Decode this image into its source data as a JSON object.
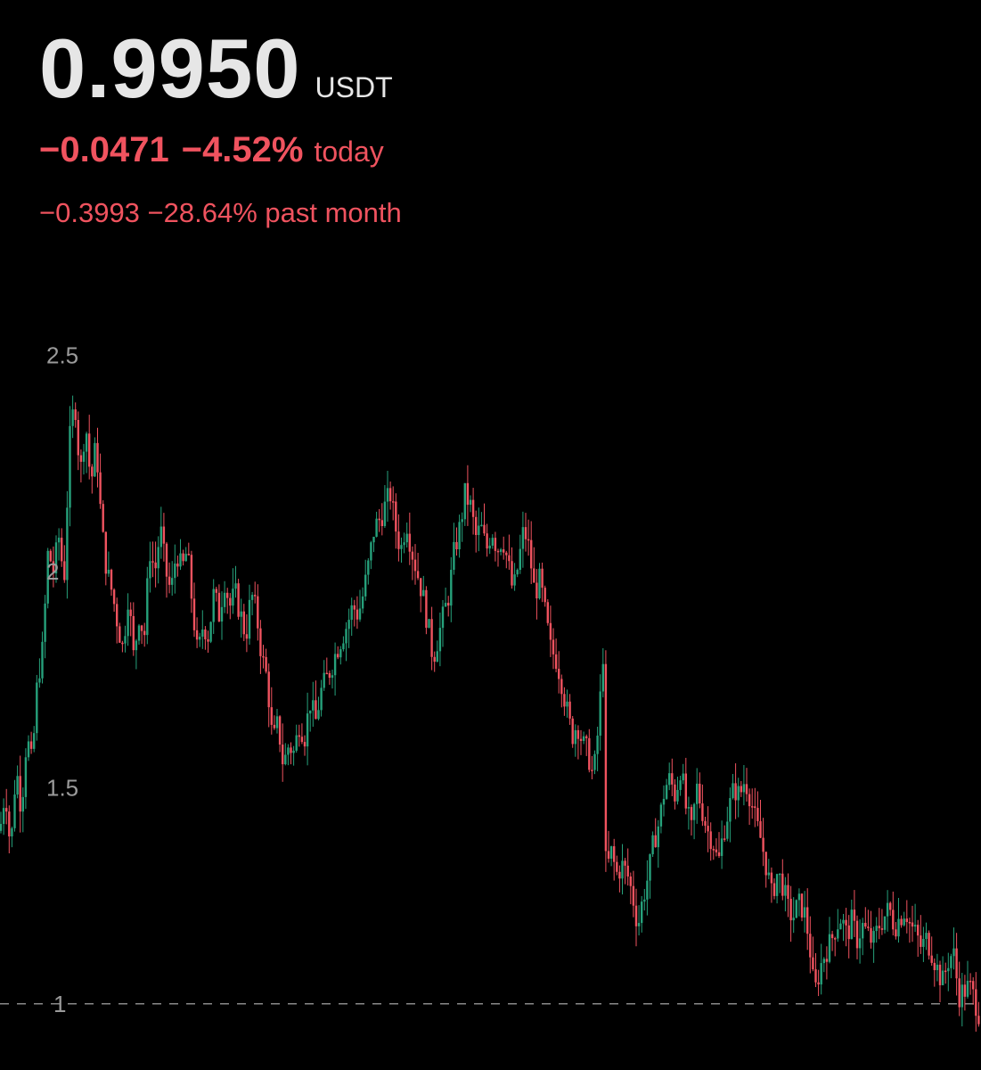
{
  "header": {
    "price": "0.9950",
    "unit": "USDT",
    "change_abs": "−0.0471",
    "change_pct": "−4.52%",
    "change_label": "today",
    "month_change": "−0.3993 −28.64% past month"
  },
  "colors": {
    "up": "#26a17b",
    "down": "#f0535f",
    "text": "#e6e6e6",
    "tick": "#9a9a9a"
  },
  "chart_data": {
    "type": "candlestick",
    "ylim": [
      0.95,
      2.6
    ],
    "yticks": [
      {
        "label": "2.5",
        "value": 2.5
      },
      {
        "label": "2",
        "value": 2.0
      },
      {
        "label": "1.5",
        "value": 1.5
      },
      {
        "label": "1",
        "value": 1.0
      }
    ],
    "reference_line": 1.0,
    "path": [
      [
        0,
        1.4
      ],
      [
        6,
        1.5
      ],
      [
        12,
        1.35
      ],
      [
        18,
        1.55
      ],
      [
        24,
        1.45
      ],
      [
        30,
        1.62
      ],
      [
        36,
        1.55
      ],
      [
        42,
        1.75
      ],
      [
        48,
        1.82
      ],
      [
        54,
        2.05
      ],
      [
        60,
        2.0
      ],
      [
        66,
        2.08
      ],
      [
        72,
        1.98
      ],
      [
        78,
        2.3
      ],
      [
        84,
        2.4
      ],
      [
        90,
        2.22
      ],
      [
        96,
        2.35
      ],
      [
        102,
        2.2
      ],
      [
        108,
        2.3
      ],
      [
        114,
        2.1
      ],
      [
        120,
        2.0
      ],
      [
        126,
        1.95
      ],
      [
        132,
        1.88
      ],
      [
        138,
        1.82
      ],
      [
        144,
        1.95
      ],
      [
        150,
        1.8
      ],
      [
        156,
        1.9
      ],
      [
        162,
        1.85
      ],
      [
        168,
        2.05
      ],
      [
        174,
        2.0
      ],
      [
        180,
        2.1
      ],
      [
        186,
        2.0
      ],
      [
        192,
        1.95
      ],
      [
        198,
        2.05
      ],
      [
        204,
        2.0
      ],
      [
        210,
        2.05
      ],
      [
        216,
        1.92
      ],
      [
        222,
        1.8
      ],
      [
        228,
        1.88
      ],
      [
        234,
        1.85
      ],
      [
        240,
        1.95
      ],
      [
        246,
        1.9
      ],
      [
        252,
        1.98
      ],
      [
        258,
        1.92
      ],
      [
        264,
        1.95
      ],
      [
        270,
        1.9
      ],
      [
        276,
        1.85
      ],
      [
        282,
        1.95
      ],
      [
        288,
        1.9
      ],
      [
        294,
        1.8
      ],
      [
        300,
        1.75
      ],
      [
        306,
        1.6
      ],
      [
        312,
        1.65
      ],
      [
        318,
        1.55
      ],
      [
        324,
        1.6
      ],
      [
        330,
        1.58
      ],
      [
        336,
        1.65
      ],
      [
        342,
        1.62
      ],
      [
        348,
        1.7
      ],
      [
        354,
        1.65
      ],
      [
        360,
        1.72
      ],
      [
        366,
        1.75
      ],
      [
        372,
        1.78
      ],
      [
        378,
        1.82
      ],
      [
        384,
        1.85
      ],
      [
        390,
        1.88
      ],
      [
        396,
        1.92
      ],
      [
        402,
        1.9
      ],
      [
        408,
        1.95
      ],
      [
        414,
        2.02
      ],
      [
        420,
        2.1
      ],
      [
        426,
        2.12
      ],
      [
        432,
        2.15
      ],
      [
        438,
        2.18
      ],
      [
        444,
        2.1
      ],
      [
        450,
        2.05
      ],
      [
        456,
        2.12
      ],
      [
        462,
        2.05
      ],
      [
        468,
        2.0
      ],
      [
        474,
        1.95
      ],
      [
        480,
        1.88
      ],
      [
        486,
        1.8
      ],
      [
        492,
        1.85
      ],
      [
        498,
        1.9
      ],
      [
        504,
        1.95
      ],
      [
        510,
        2.05
      ],
      [
        516,
        2.1
      ],
      [
        522,
        2.18
      ],
      [
        528,
        2.15
      ],
      [
        534,
        2.08
      ],
      [
        540,
        2.1
      ],
      [
        546,
        2.05
      ],
      [
        552,
        2.1
      ],
      [
        558,
        2.05
      ],
      [
        564,
        2.08
      ],
      [
        570,
        2.02
      ],
      [
        576,
        1.95
      ],
      [
        582,
        2.02
      ],
      [
        588,
        2.1
      ],
      [
        594,
        2.05
      ],
      [
        600,
        1.95
      ],
      [
        606,
        1.98
      ],
      [
        612,
        1.9
      ],
      [
        618,
        1.82
      ],
      [
        624,
        1.8
      ],
      [
        630,
        1.75
      ],
      [
        636,
        1.68
      ],
      [
        642,
        1.62
      ],
      [
        648,
        1.65
      ],
      [
        654,
        1.6
      ],
      [
        660,
        1.58
      ],
      [
        666,
        1.52
      ],
      [
        672,
        1.65
      ],
      [
        678,
        1.85
      ],
      [
        680,
        1.3
      ],
      [
        686,
        1.35
      ],
      [
        692,
        1.3
      ],
      [
        698,
        1.32
      ],
      [
        704,
        1.3
      ],
      [
        710,
        1.25
      ],
      [
        716,
        1.18
      ],
      [
        722,
        1.25
      ],
      [
        728,
        1.3
      ],
      [
        734,
        1.38
      ],
      [
        740,
        1.42
      ],
      [
        746,
        1.5
      ],
      [
        752,
        1.52
      ],
      [
        758,
        1.48
      ],
      [
        764,
        1.55
      ],
      [
        770,
        1.45
      ],
      [
        776,
        1.4
      ],
      [
        782,
        1.5
      ],
      [
        788,
        1.45
      ],
      [
        794,
        1.4
      ],
      [
        800,
        1.38
      ],
      [
        806,
        1.32
      ],
      [
        812,
        1.4
      ],
      [
        818,
        1.45
      ],
      [
        824,
        1.5
      ],
      [
        830,
        1.48
      ],
      [
        836,
        1.52
      ],
      [
        842,
        1.48
      ],
      [
        848,
        1.42
      ],
      [
        854,
        1.38
      ],
      [
        860,
        1.32
      ],
      [
        866,
        1.25
      ],
      [
        872,
        1.3
      ],
      [
        878,
        1.28
      ],
      [
        884,
        1.22
      ],
      [
        890,
        1.2
      ],
      [
        896,
        1.23
      ],
      [
        902,
        1.22
      ],
      [
        908,
        1.15
      ],
      [
        914,
        1.02
      ],
      [
        920,
        1.08
      ],
      [
        926,
        1.12
      ],
      [
        932,
        1.14
      ],
      [
        938,
        1.18
      ],
      [
        944,
        1.2
      ],
      [
        950,
        1.16
      ],
      [
        956,
        1.19
      ],
      [
        962,
        1.15
      ],
      [
        968,
        1.18
      ],
      [
        974,
        1.16
      ],
      [
        980,
        1.14
      ],
      [
        986,
        1.18
      ],
      [
        992,
        1.2
      ],
      [
        998,
        1.22
      ],
      [
        1004,
        1.18
      ],
      [
        1010,
        1.2
      ],
      [
        1016,
        1.22
      ],
      [
        1022,
        1.18
      ],
      [
        1028,
        1.16
      ],
      [
        1034,
        1.13
      ],
      [
        1040,
        1.15
      ],
      [
        1046,
        1.12
      ],
      [
        1052,
        1.08
      ],
      [
        1058,
        1.05
      ],
      [
        1064,
        1.1
      ],
      [
        1070,
        1.12
      ],
      [
        1076,
        1.02
      ],
      [
        1082,
        1.03
      ],
      [
        1088,
        1.04
      ],
      [
        1094,
        1.01
      ],
      [
        1100,
        0.97
      ]
    ]
  }
}
